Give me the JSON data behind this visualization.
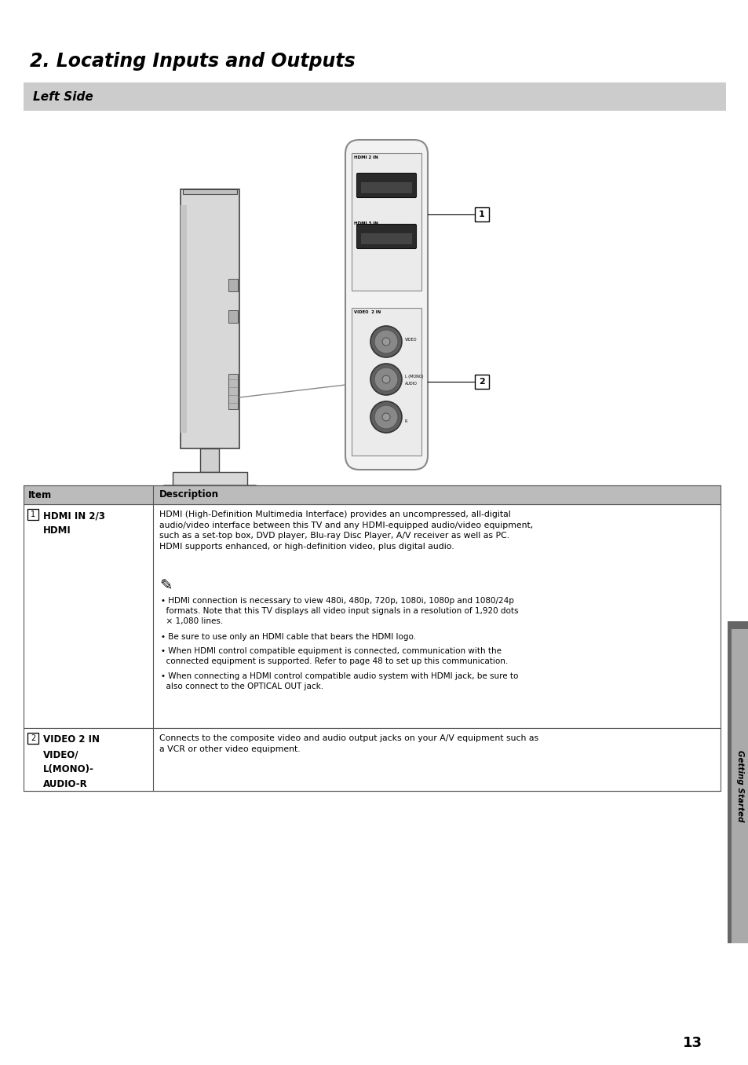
{
  "title": "2. Locating Inputs and Outputs",
  "section": "Left Side",
  "sidebar_text": "Getting Started",
  "page_number": "13",
  "bg_color": "#ffffff",
  "section_bg": "#cccccc",
  "table_header_bg": "#bbbbbb",
  "table_header": [
    "Item",
    "Description"
  ],
  "row1_item_name": "HDMI IN 2/3\nHDMI",
  "row1_desc_main": "HDMI (High-Definition Multimedia Interface) provides an uncompressed, all-digital\naudio/video interface between this TV and any HDMI-equipped audio/video equipment,\nsuch as a set-top box, DVD player, Blu-ray Disc Player, A/V receiver as well as PC.\nHDMI supports enhanced, or high-definition video, plus digital audio.",
  "row1_desc_bullets": [
    "HDMI connection is necessary to view 480i, 480p, 720p, 1080i, 1080p and 1080/24p\n  formats. Note that this TV displays all video input signals in a resolution of 1,920 dots\n  × 1,080 lines.",
    "Be sure to use only an HDMI cable that bears the HDMI logo.",
    "When HDMI control compatible equipment is connected, communication with the\n  connected equipment is supported. Refer to page 48 to set up this communication.",
    "When connecting a HDMI control compatible audio system with HDMI jack, be sure to\n  also connect to the OPTICAL OUT jack."
  ],
  "row2_item_name": "VIDEO 2 IN\nVIDEO/\nL(MONO)-\nAUDIO-R",
  "row2_desc": "Connects to the composite video and audio output jacks on your A/V equipment such as\na VCR or other video equipment.",
  "sidebar_color": "#888888"
}
